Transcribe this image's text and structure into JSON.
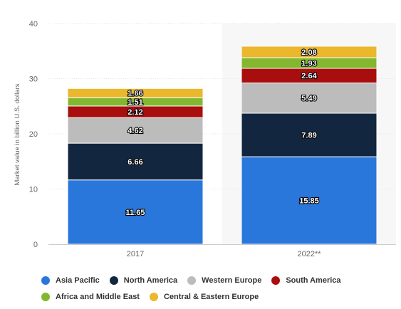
{
  "chart_data": {
    "type": "bar",
    "stacked": true,
    "categories": [
      "2017",
      "2022**"
    ],
    "ylabel": "Market value in billion U.S. dollars",
    "ylim": [
      0,
      40
    ],
    "yticks": [
      0,
      10,
      20,
      30,
      40
    ],
    "grid": true,
    "highlighted_category": "2022**",
    "legend_position": "bottom",
    "series": [
      {
        "name": "Asia Pacific",
        "color": "#2a77db",
        "values": [
          11.65,
          15.85
        ],
        "labels": [
          "11.65",
          "15.85"
        ]
      },
      {
        "name": "North America",
        "color": "#13263f",
        "values": [
          6.66,
          7.89
        ],
        "labels": [
          "6.66",
          "7.89"
        ]
      },
      {
        "name": "Western Europe",
        "color": "#bcbcbc",
        "values": [
          4.62,
          5.49
        ],
        "labels": [
          "4.62",
          "5.49"
        ]
      },
      {
        "name": "South America",
        "color": "#a80e0e",
        "values": [
          2.12,
          2.64
        ],
        "labels": [
          "2.12",
          "2.64"
        ]
      },
      {
        "name": "Africa and Middle East",
        "color": "#82b72f",
        "values": [
          1.51,
          1.93
        ],
        "labels": [
          "1.51",
          "1.93"
        ]
      },
      {
        "name": "Central & Eastern Europe",
        "color": "#eab72d",
        "values": [
          1.66,
          2.08
        ],
        "labels": [
          "1.66",
          "2.08"
        ]
      }
    ]
  }
}
